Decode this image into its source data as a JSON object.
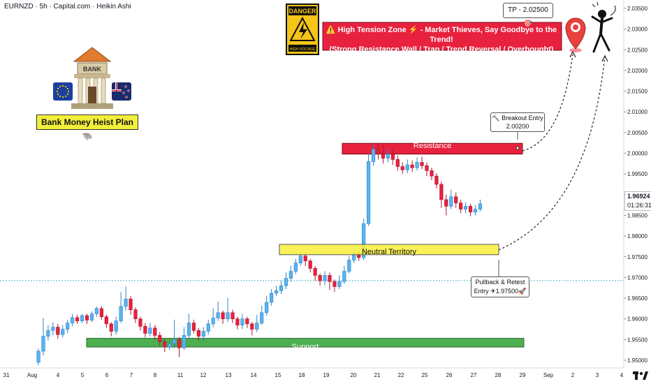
{
  "header": {
    "title": "EURNZD · 5h · Capital.com · Heikin Ashi"
  },
  "price_marker": {
    "price": "1.96924",
    "countdown": "01:26:31"
  },
  "colors": {
    "bull": "#5ab4f0",
    "bull_border": "#2f84c8",
    "bear": "#e8213e",
    "bear_border": "#b0122b",
    "resistance": "#e8213e",
    "support": "#4caf50",
    "neutral": "#f8ef3a",
    "danger_bg": "#e8213e"
  },
  "annotations": {
    "bank_plan": "Bank Money Heist Plan 🐃",
    "bank_sign": "BANK",
    "danger_sign": "DANGER",
    "danger_sub": "HIGH VOLTAGE",
    "warning_line1": "⚠️ High Tension Zone ⚡ - Market Thieves, Say Goodbye to the Trend!",
    "warning_line2": "(Strong Resistance Wall / Trap / Trend Reversal / Overbought)",
    "tp": "TP - 2.02500🎯",
    "breakout_line1": "🔨 Breakout Entry",
    "breakout_line2": "2.00200",
    "pullback_line1": "Pullback & Retest",
    "pullback_line2": "Entry ✈1.97500🚀",
    "resistance": "Resistance",
    "neutral": "Neutral Territory",
    "support": "Support"
  },
  "chart_data": {
    "type": "candlestick",
    "style": "Heikin Ashi",
    "symbol": "EURNZD",
    "ylim": [
      1.948,
      2.035
    ],
    "y_ticks": [
      "2.03500",
      "2.03000",
      "2.02500",
      "2.02000",
      "2.01500",
      "2.01000",
      "2.00500",
      "2.00000",
      "1.99500",
      "1.99000",
      "1.98500",
      "1.98000",
      "1.97500",
      "1.97000",
      "1.96500",
      "1.96000",
      "1.95500",
      "1.95000"
    ],
    "x_ticks": [
      "31",
      "Aug",
      "4",
      "5",
      "6",
      "7",
      "8",
      "11",
      "12",
      "13",
      "14",
      "15",
      "18",
      "19",
      "20",
      "21",
      "22",
      "25",
      "26",
      "27",
      "28",
      "29",
      "Sep",
      "2",
      "3",
      "4"
    ],
    "zones": [
      {
        "name": "Resistance",
        "low": 1.9998,
        "high": 2.0024
      },
      {
        "name": "Neutral Territory",
        "low": 1.9755,
        "high": 1.978
      },
      {
        "name": "Support",
        "low": 1.9532,
        "high": 1.9553
      }
    ],
    "levels": {
      "current": 1.96924,
      "tp": 2.025,
      "breakout_entry": 2.002,
      "pullback_entry": 1.975
    },
    "candles": [
      {
        "o": 1.9495,
        "c": 1.9522,
        "h": 1.9528,
        "l": 1.9488
      },
      {
        "o": 1.9522,
        "c": 1.9558,
        "h": 1.9602,
        "l": 1.9512
      },
      {
        "o": 1.9558,
        "c": 1.9572,
        "h": 1.9585,
        "l": 1.9548
      },
      {
        "o": 1.9572,
        "c": 1.958,
        "h": 1.9592,
        "l": 1.956
      },
      {
        "o": 1.958,
        "c": 1.9562,
        "h": 1.9588,
        "l": 1.9552
      },
      {
        "o": 1.9562,
        "c": 1.9575,
        "h": 1.9585,
        "l": 1.9555
      },
      {
        "o": 1.9575,
        "c": 1.959,
        "h": 1.9598,
        "l": 1.9565
      },
      {
        "o": 1.959,
        "c": 1.9603,
        "h": 1.9612,
        "l": 1.9582
      },
      {
        "o": 1.9603,
        "c": 1.9595,
        "h": 1.961,
        "l": 1.9588
      },
      {
        "o": 1.9595,
        "c": 1.9608,
        "h": 1.9612,
        "l": 1.959
      },
      {
        "o": 1.9608,
        "c": 1.9597,
        "h": 1.9612,
        "l": 1.9588
      },
      {
        "o": 1.9597,
        "c": 1.9612,
        "h": 1.9618,
        "l": 1.9592
      },
      {
        "o": 1.9612,
        "c": 1.9625,
        "h": 1.963,
        "l": 1.9605
      },
      {
        "o": 1.9625,
        "c": 1.9605,
        "h": 1.963,
        "l": 1.9598
      },
      {
        "o": 1.9605,
        "c": 1.9588,
        "h": 1.961,
        "l": 1.9578
      },
      {
        "o": 1.9588,
        "c": 1.957,
        "h": 1.9592,
        "l": 1.9558
      },
      {
        "o": 1.957,
        "c": 1.9595,
        "h": 1.9605,
        "l": 1.9562
      },
      {
        "o": 1.9595,
        "c": 1.963,
        "h": 1.9665,
        "l": 1.959
      },
      {
        "o": 1.963,
        "c": 1.9648,
        "h": 1.9678,
        "l": 1.962
      },
      {
        "o": 1.9648,
        "c": 1.9622,
        "h": 1.9655,
        "l": 1.961
      },
      {
        "o": 1.9622,
        "c": 1.96,
        "h": 1.9628,
        "l": 1.959
      },
      {
        "o": 1.96,
        "c": 1.9582,
        "h": 1.9605,
        "l": 1.9572
      },
      {
        "o": 1.9582,
        "c": 1.9565,
        "h": 1.959,
        "l": 1.9555
      },
      {
        "o": 1.9565,
        "c": 1.9578,
        "h": 1.959,
        "l": 1.9558
      },
      {
        "o": 1.9578,
        "c": 1.956,
        "h": 1.9585,
        "l": 1.955
      },
      {
        "o": 1.956,
        "c": 1.9545,
        "h": 1.9568,
        "l": 1.9535
      },
      {
        "o": 1.9545,
        "c": 1.9532,
        "h": 1.9552,
        "l": 1.952
      },
      {
        "o": 1.9532,
        "c": 1.954,
        "h": 1.955,
        "l": 1.9525
      },
      {
        "o": 1.954,
        "c": 1.955,
        "h": 1.9598,
        "l": 1.953
      },
      {
        "o": 1.955,
        "c": 1.953,
        "h": 1.9556,
        "l": 1.9508
      },
      {
        "o": 1.953,
        "c": 1.956,
        "h": 1.958,
        "l": 1.9525
      },
      {
        "o": 1.956,
        "c": 1.959,
        "h": 1.9612,
        "l": 1.9552
      },
      {
        "o": 1.959,
        "c": 1.9572,
        "h": 1.9598,
        "l": 1.9565
      },
      {
        "o": 1.9572,
        "c": 1.9558,
        "h": 1.9578,
        "l": 1.9548
      },
      {
        "o": 1.9558,
        "c": 1.957,
        "h": 1.958,
        "l": 1.9545
      },
      {
        "o": 1.957,
        "c": 1.9588,
        "h": 1.9598,
        "l": 1.9562
      },
      {
        "o": 1.9588,
        "c": 1.9602,
        "h": 1.9625,
        "l": 1.958
      },
      {
        "o": 1.9602,
        "c": 1.9615,
        "h": 1.9642,
        "l": 1.9595
      },
      {
        "o": 1.9615,
        "c": 1.96,
        "h": 1.962,
        "l": 1.9588
      },
      {
        "o": 1.96,
        "c": 1.9615,
        "h": 1.965,
        "l": 1.9592
      },
      {
        "o": 1.9615,
        "c": 1.96,
        "h": 1.9622,
        "l": 1.959
      },
      {
        "o": 1.96,
        "c": 1.9585,
        "h": 1.9605,
        "l": 1.9575
      },
      {
        "o": 1.9585,
        "c": 1.96,
        "h": 1.9612,
        "l": 1.9575
      },
      {
        "o": 1.96,
        "c": 1.9588,
        "h": 1.9605,
        "l": 1.9578
      },
      {
        "o": 1.9588,
        "c": 1.9575,
        "h": 1.9592,
        "l": 1.956
      },
      {
        "o": 1.9575,
        "c": 1.959,
        "h": 1.961,
        "l": 1.9568
      },
      {
        "o": 1.959,
        "c": 1.9615,
        "h": 1.9632,
        "l": 1.9585
      },
      {
        "o": 1.9615,
        "c": 1.964,
        "h": 1.9655,
        "l": 1.9608
      },
      {
        "o": 1.964,
        "c": 1.9662,
        "h": 1.9672,
        "l": 1.9632
      },
      {
        "o": 1.9662,
        "c": 1.9668,
        "h": 1.968,
        "l": 1.9655
      },
      {
        "o": 1.9668,
        "c": 1.968,
        "h": 1.9692,
        "l": 1.966
      },
      {
        "o": 1.968,
        "c": 1.9698,
        "h": 1.9712,
        "l": 1.9672
      },
      {
        "o": 1.9698,
        "c": 1.9715,
        "h": 1.9728,
        "l": 1.969
      },
      {
        "o": 1.9715,
        "c": 1.9735,
        "h": 1.9745,
        "l": 1.9708
      },
      {
        "o": 1.9735,
        "c": 1.9752,
        "h": 1.9762,
        "l": 1.9728
      },
      {
        "o": 1.9752,
        "c": 1.974,
        "h": 1.976,
        "l": 1.9728
      },
      {
        "o": 1.974,
        "c": 1.9722,
        "h": 1.9745,
        "l": 1.9712
      },
      {
        "o": 1.9722,
        "c": 1.9705,
        "h": 1.9728,
        "l": 1.9692
      },
      {
        "o": 1.9705,
        "c": 1.9692,
        "h": 1.971,
        "l": 1.968
      },
      {
        "o": 1.9692,
        "c": 1.9705,
        "h": 1.9715,
        "l": 1.9682
      },
      {
        "o": 1.9705,
        "c": 1.969,
        "h": 1.9712,
        "l": 1.967
      },
      {
        "o": 1.969,
        "c": 1.9678,
        "h": 1.9695,
        "l": 1.9665
      },
      {
        "o": 1.9678,
        "c": 1.969,
        "h": 1.9705,
        "l": 1.9672
      },
      {
        "o": 1.969,
        "c": 1.9715,
        "h": 1.9728,
        "l": 1.9685
      },
      {
        "o": 1.9715,
        "c": 1.9742,
        "h": 1.9752,
        "l": 1.971
      },
      {
        "o": 1.9742,
        "c": 1.9758,
        "h": 1.9768,
        "l": 1.9735
      },
      {
        "o": 1.9758,
        "c": 1.9748,
        "h": 1.9765,
        "l": 1.974
      },
      {
        "o": 1.9748,
        "c": 1.983,
        "h": 1.9842,
        "l": 1.9742
      },
      {
        "o": 1.983,
        "c": 1.998,
        "h": 1.9998,
        "l": 1.9825
      },
      {
        "o": 1.998,
        "c": 2.001,
        "h": 2.0025,
        "l": 1.997
      },
      {
        "o": 2.001,
        "c": 1.9998,
        "h": 2.0025,
        "l": 1.9985
      },
      {
        "o": 1.9998,
        "c": 1.9988,
        "h": 2.002,
        "l": 1.9975
      },
      {
        "o": 1.9988,
        "c": 1.9998,
        "h": 2.0012,
        "l": 1.9978
      },
      {
        "o": 1.9998,
        "c": 1.9985,
        "h": 2.001,
        "l": 1.9972
      },
      {
        "o": 1.9985,
        "c": 1.9968,
        "h": 1.9995,
        "l": 1.9958
      },
      {
        "o": 1.9968,
        "c": 1.996,
        "h": 1.9978,
        "l": 1.995
      },
      {
        "o": 1.996,
        "c": 1.9972,
        "h": 1.9985,
        "l": 1.9952
      },
      {
        "o": 1.9972,
        "c": 1.9965,
        "h": 1.9982,
        "l": 1.9955
      },
      {
        "o": 1.9965,
        "c": 1.9978,
        "h": 1.999,
        "l": 1.9958
      },
      {
        "o": 1.9978,
        "c": 1.997,
        "h": 1.9992,
        "l": 1.9962
      },
      {
        "o": 1.997,
        "c": 1.9958,
        "h": 1.9978,
        "l": 1.9945
      },
      {
        "o": 1.9958,
        "c": 1.9945,
        "h": 1.9965,
        "l": 1.9935
      },
      {
        "o": 1.9945,
        "c": 1.9925,
        "h": 1.9952,
        "l": 1.9915
      },
      {
        "o": 1.9925,
        "c": 1.9888,
        "h": 1.9932,
        "l": 1.9868
      },
      {
        "o": 1.9888,
        "c": 1.9872,
        "h": 1.99,
        "l": 1.985
      },
      {
        "o": 1.9872,
        "c": 1.9895,
        "h": 1.9912,
        "l": 1.9865
      },
      {
        "o": 1.9895,
        "c": 1.988,
        "h": 1.9905,
        "l": 1.9868
      },
      {
        "o": 1.988,
        "c": 1.9865,
        "h": 1.9888,
        "l": 1.9855
      },
      {
        "o": 1.9865,
        "c": 1.9872,
        "h": 1.9882,
        "l": 1.9855
      },
      {
        "o": 1.9872,
        "c": 1.9858,
        "h": 1.9878,
        "l": 1.9848
      },
      {
        "o": 1.9858,
        "c": 1.9865,
        "h": 1.9875,
        "l": 1.985
      },
      {
        "o": 1.9865,
        "c": 1.9878,
        "h": 1.9888,
        "l": 1.986
      }
    ]
  }
}
